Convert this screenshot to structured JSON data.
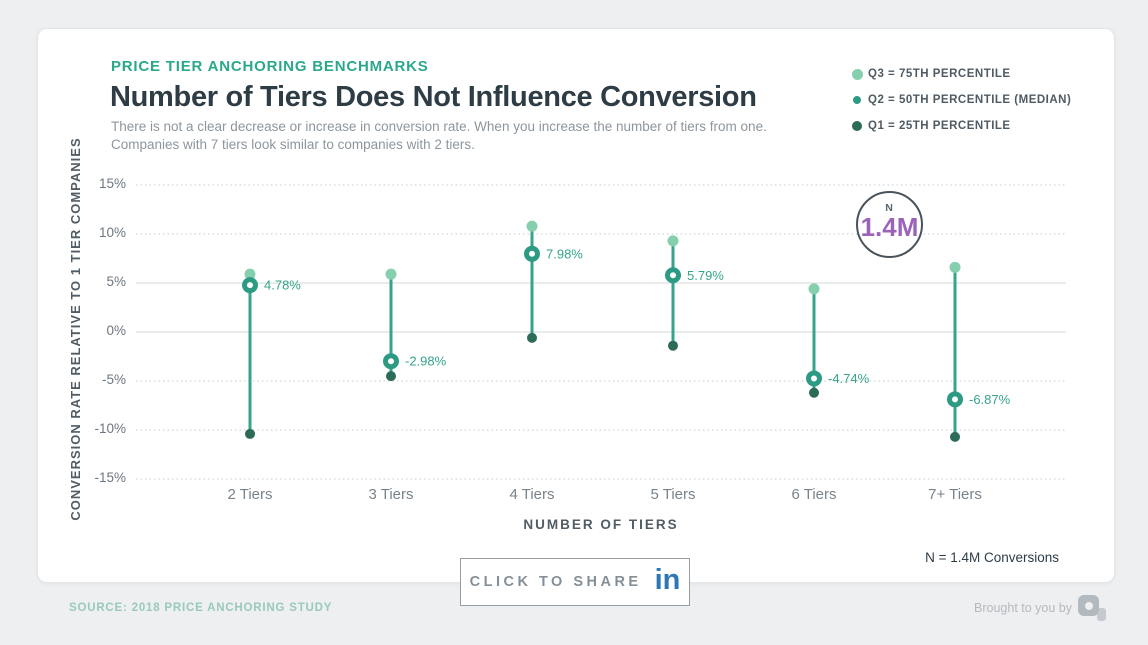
{
  "header": {
    "kicker": "PRICE TIER ANCHORING BENCHMARKS",
    "title": "Number of Tiers Does Not Influence Conversion",
    "subtitle_line1": "There is not a clear decrease or increase in conversion rate. When you increase the number of tiers from one.",
    "subtitle_line2": "Companies with 7 tiers look similar to companies with 2 tiers."
  },
  "badge": {
    "top_label": "N",
    "value": "1.4M"
  },
  "footnote": {
    "n_text": "N = 1.4M Conversions"
  },
  "share": {
    "label": "CLICK TO SHARE",
    "linkedin_glyph": "in"
  },
  "footer": {
    "source": "SOURCE: 2018 PRICE ANCHORING STUDY",
    "brought": "Brought to you by"
  },
  "chart_data": {
    "type": "dumbbell-range",
    "title": "Number of Tiers Does Not Influence Conversion",
    "categories": [
      "2 Tiers",
      "3 Tiers",
      "4 Tiers",
      "5 Tiers",
      "6 Tiers",
      "7+ Tiers"
    ],
    "series": [
      {
        "name": "Q3 = 75TH PERCENTILE",
        "role": "q3",
        "marker": "dot-light",
        "values": [
          5.9,
          5.9,
          10.8,
          9.3,
          4.4,
          6.6
        ]
      },
      {
        "name": "Q2 = 50TH PERCENTILE (MEDIAN)",
        "role": "q2",
        "marker": "ring",
        "values": [
          4.78,
          -2.98,
          7.98,
          5.79,
          -4.74,
          -6.87
        ],
        "labels": [
          "4.78%",
          "-2.98%",
          "7.98%",
          "5.79%",
          "-4.74%",
          "-6.87%"
        ]
      },
      {
        "name": "Q1 = 25TH PERCENTILE",
        "role": "q1",
        "marker": "dot-dark",
        "values": [
          -10.4,
          -4.5,
          -0.6,
          -1.4,
          -6.2,
          -10.7
        ]
      }
    ],
    "xlabel": "NUMBER OF TIERS",
    "ylabel": "CONVERSION RATE RELATIVE TO 1 TIER COMPANIES",
    "yticks": [
      {
        "label": "15%",
        "value": 15
      },
      {
        "label": "10%",
        "value": 10
      },
      {
        "label": "5%",
        "value": 5
      },
      {
        "label": "0%",
        "value": 0
      },
      {
        "label": "-5%",
        "value": -5
      },
      {
        "label": "-10%",
        "value": -10
      },
      {
        "label": "-15%",
        "value": -15
      }
    ],
    "ylim": [
      -17,
      17
    ],
    "grid": true,
    "legend_position": "top-right",
    "annotation": "N = 1.4M"
  },
  "colors": {
    "background": "#edeff1",
    "card": "#ffffff",
    "card_border": "#e3e6e8",
    "accent_teal": "#2ba88c",
    "title_text": "#2e3c46",
    "subtitle_text": "#8d969d",
    "legend_text": "#4f5a62",
    "axis_text": "#6d7680",
    "axis_title_text": "#515c64",
    "grid_dotted": "#c6cbcf",
    "grid_solid": "#d4d8da",
    "range_line": "#36a38b",
    "q3_dot": "#85cfae",
    "q2_ring": "#2d9b83",
    "q1_dot": "#2b6b58",
    "value_label": "#36a38b",
    "badge_border": "#4a535b",
    "badge_label": "#5a646c",
    "badge_value": "#9c64b8",
    "note_text": "#2e3c46",
    "share_border": "#969da3",
    "share_text": "#858f97",
    "linkedin_blue": "#2e77b5",
    "source_text": "#99c9ba",
    "brought_text": "#b4bac0",
    "logo_gray": "#b2b9bf",
    "logo_gray_light": "#c5cad0"
  }
}
